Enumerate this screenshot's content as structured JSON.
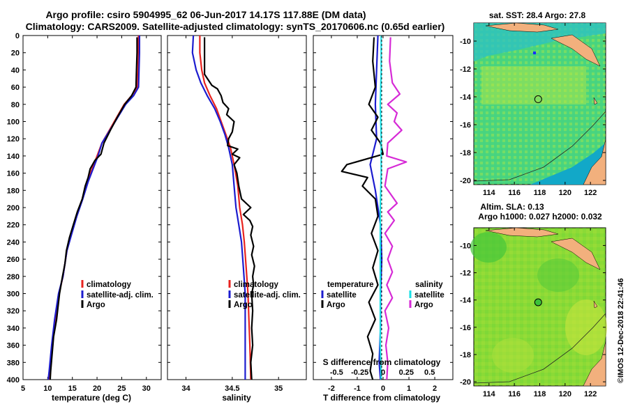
{
  "header": {
    "title_line1": "Argo profile: csiro 5904995_62 06-Jun-2017 14.17S 117.88E (DM data)",
    "title_line2": "Climatology: CARS2009. Satellite-adjusted climatology: synTS_20170606.nc (0.65d earlier)"
  },
  "colors": {
    "climatology": "#e8231f",
    "satellite": "#1c1ccf",
    "argo": "#000000",
    "sat_salinity": "#19e0e6",
    "argo_salinity_diff": "#d62ad6"
  },
  "chart_data": [
    {
      "type": "line",
      "id": "temperature",
      "xlabel": "temperature (deg C)",
      "xlim": [
        5,
        33
      ],
      "ylim": [
        0,
        400
      ],
      "y_reversed": true,
      "xticks": [
        "5",
        "10",
        "15",
        "20",
        "25",
        "30"
      ],
      "yticks": [
        "0",
        "20",
        "40",
        "60",
        "80",
        "100",
        "120",
        "140",
        "160",
        "180",
        "200",
        "220",
        "240",
        "260",
        "280",
        "300",
        "320",
        "340",
        "360",
        "380",
        "400"
      ],
      "legend": [
        "climatology",
        "satellite-adj. clim.",
        "Argo"
      ],
      "series": [
        {
          "name": "climatology",
          "color": "#e8231f",
          "points": [
            [
              28.4,
              0
            ],
            [
              28.4,
              20
            ],
            [
              28.3,
              40
            ],
            [
              28.2,
              60
            ],
            [
              27,
              70
            ],
            [
              25.5,
              80
            ],
            [
              24,
              95
            ],
            [
              22.5,
              110
            ],
            [
              21,
              125
            ],
            [
              20,
              140
            ],
            [
              19,
              155
            ],
            [
              18,
              170
            ],
            [
              17,
              190
            ],
            [
              15.8,
              210
            ],
            [
              14.8,
              230
            ],
            [
              13.9,
              250
            ],
            [
              13.1,
              280
            ],
            [
              12.3,
              300
            ],
            [
              11.5,
              330
            ],
            [
              10.9,
              360
            ],
            [
              10.4,
              390
            ],
            [
              10.2,
              400
            ]
          ]
        },
        {
          "name": "satellite-adj. clim.",
          "color": "#1c1ccf",
          "points": [
            [
              28.6,
              0
            ],
            [
              28.6,
              20
            ],
            [
              28.5,
              40
            ],
            [
              28.4,
              60
            ],
            [
              27.4,
              70
            ],
            [
              25.8,
              80
            ],
            [
              24.2,
              95
            ],
            [
              22.6,
              110
            ],
            [
              21,
              125
            ],
            [
              20.2,
              140
            ],
            [
              19.2,
              155
            ],
            [
              18.2,
              170
            ],
            [
              17.1,
              190
            ],
            [
              15.9,
              210
            ],
            [
              14.9,
              230
            ],
            [
              13.9,
              250
            ],
            [
              13.1,
              280
            ],
            [
              12.2,
              300
            ],
            [
              11.4,
              330
            ],
            [
              10.8,
              360
            ],
            [
              10.3,
              390
            ],
            [
              10.1,
              400
            ]
          ]
        },
        {
          "name": "Argo",
          "color": "#000000",
          "points": [
            [
              28.1,
              2
            ],
            [
              28.1,
              20
            ],
            [
              28,
              40
            ],
            [
              27.9,
              60
            ],
            [
              27,
              70
            ],
            [
              25.6,
              80
            ],
            [
              24.1,
              95
            ],
            [
              22.7,
              110
            ],
            [
              21.4,
              125
            ],
            [
              20.8,
              138
            ],
            [
              19.6,
              145
            ],
            [
              18.6,
              155
            ],
            [
              18.2,
              165
            ],
            [
              17.6,
              175
            ],
            [
              17,
              190
            ],
            [
              16,
              205
            ],
            [
              15.2,
              220
            ],
            [
              14.4,
              235
            ],
            [
              13.8,
              250
            ],
            [
              13.5,
              265
            ],
            [
              13,
              280
            ],
            [
              12.4,
              300
            ],
            [
              12.2,
              310
            ],
            [
              11.8,
              330
            ],
            [
              11.2,
              350
            ],
            [
              10.9,
              370
            ],
            [
              10.6,
              390
            ],
            [
              10.5,
              400
            ]
          ]
        }
      ]
    },
    {
      "type": "line",
      "id": "salinity",
      "xlabel": "salinity",
      "xlim": [
        33.8,
        35.3
      ],
      "ylim": [
        0,
        400
      ],
      "y_reversed": true,
      "xticks": [
        "34",
        "34.5",
        "35"
      ],
      "legend": [
        "climatology",
        "satellite-adj. clim.",
        "Argo"
      ],
      "series": [
        {
          "name": "climatology",
          "color": "#e8231f",
          "points": [
            [
              34.15,
              0
            ],
            [
              34.15,
              20
            ],
            [
              34.17,
              40
            ],
            [
              34.2,
              55
            ],
            [
              34.26,
              70
            ],
            [
              34.33,
              85
            ],
            [
              34.38,
              100
            ],
            [
              34.43,
              115
            ],
            [
              34.48,
              130
            ],
            [
              34.52,
              150
            ],
            [
              34.56,
              175
            ],
            [
              34.58,
              200
            ],
            [
              34.61,
              220
            ],
            [
              34.63,
              240
            ],
            [
              34.65,
              270
            ],
            [
              34.67,
              300
            ],
            [
              34.68,
              330
            ],
            [
              34.69,
              360
            ],
            [
              34.7,
              400
            ]
          ]
        },
        {
          "name": "satellite-adj. clim.",
          "color": "#1c1ccf",
          "points": [
            [
              34.08,
              0
            ],
            [
              34.07,
              20
            ],
            [
              34.11,
              40
            ],
            [
              34.16,
              55
            ],
            [
              34.23,
              70
            ],
            [
              34.31,
              85
            ],
            [
              34.37,
              100
            ],
            [
              34.42,
              115
            ],
            [
              34.46,
              130
            ],
            [
              34.5,
              150
            ],
            [
              34.52,
              175
            ],
            [
              34.54,
              200
            ],
            [
              34.57,
              220
            ],
            [
              34.6,
              240
            ],
            [
              34.62,
              270
            ],
            [
              34.64,
              300
            ],
            [
              34.64,
              330
            ],
            [
              34.64,
              360
            ],
            [
              34.64,
              400
            ]
          ]
        },
        {
          "name": "Argo",
          "color": "#000000",
          "points": [
            [
              34.2,
              2
            ],
            [
              34.2,
              20
            ],
            [
              34.2,
              45
            ],
            [
              34.28,
              58
            ],
            [
              34.34,
              62
            ],
            [
              34.38,
              70
            ],
            [
              34.4,
              78
            ],
            [
              34.46,
              85
            ],
            [
              34.44,
              92
            ],
            [
              34.52,
              100
            ],
            [
              34.5,
              112
            ],
            [
              34.46,
              120
            ],
            [
              34.45,
              128
            ],
            [
              34.56,
              132
            ],
            [
              34.5,
              138
            ],
            [
              34.58,
              142
            ],
            [
              34.52,
              150
            ],
            [
              34.55,
              160
            ],
            [
              34.57,
              175
            ],
            [
              34.6,
              190
            ],
            [
              34.7,
              200
            ],
            [
              34.62,
              208
            ],
            [
              34.69,
              215
            ],
            [
              34.72,
              222
            ],
            [
              34.7,
              232
            ],
            [
              34.73,
              245
            ],
            [
              34.71,
              255
            ],
            [
              34.74,
              268
            ],
            [
              34.72,
              280
            ],
            [
              34.73,
              290
            ],
            [
              34.71,
              300
            ],
            [
              34.72,
              320
            ],
            [
              34.71,
              340
            ],
            [
              34.72,
              360
            ],
            [
              34.7,
              380
            ],
            [
              34.71,
              400
            ]
          ]
        }
      ]
    },
    {
      "type": "line",
      "id": "difference",
      "xlabel": "T difference from climatology",
      "top_axis_label": "S difference from climatology",
      "xlim_temperature": [
        -2.7,
        2.7
      ],
      "xlim_salinity": [
        -0.75,
        0.75
      ],
      "ylim": [
        0,
        400
      ],
      "y_reversed": true,
      "xticks": [
        "-2",
        "-1",
        "0",
        "1",
        "2"
      ],
      "top_xticks": [
        "-0.5",
        "-0.25",
        "0",
        "0.25",
        "0.5"
      ],
      "legend_temperature_title": "temperature",
      "legend_salinity_title": "salinity",
      "legend_temperature": [
        "satellite",
        "Argo"
      ],
      "legend_salinity": [
        "satellite",
        "Argo"
      ],
      "series": [
        {
          "name": "T satellite",
          "axis": "temperature",
          "color": "#1c1ccf",
          "points": [
            [
              -0.2,
              0
            ],
            [
              -0.25,
              40
            ],
            [
              -0.3,
              80
            ],
            [
              -0.25,
              120
            ],
            [
              -0.5,
              150
            ],
            [
              -0.3,
              180
            ],
            [
              -0.1,
              220
            ],
            [
              -0.05,
              260
            ],
            [
              -0.1,
              300
            ],
            [
              -0.1,
              340
            ],
            [
              -0.15,
              380
            ],
            [
              -0.1,
              400
            ]
          ]
        },
        {
          "name": "T Argo",
          "axis": "temperature",
          "color": "#000000",
          "points": [
            [
              -0.35,
              2
            ],
            [
              -0.4,
              30
            ],
            [
              -0.3,
              60
            ],
            [
              -0.55,
              80
            ],
            [
              -0.2,
              95
            ],
            [
              -0.45,
              110
            ],
            [
              -0.1,
              125
            ],
            [
              0.0,
              138
            ],
            [
              -1.4,
              150
            ],
            [
              -1.6,
              158
            ],
            [
              -0.6,
              165
            ],
            [
              -0.8,
              175
            ],
            [
              -0.3,
              190
            ],
            [
              -0.2,
              210
            ],
            [
              -0.45,
              230
            ],
            [
              -0.2,
              250
            ],
            [
              -0.4,
              270
            ],
            [
              -0.2,
              290
            ],
            [
              -0.55,
              310
            ],
            [
              -0.3,
              330
            ],
            [
              -0.6,
              350
            ],
            [
              -0.4,
              370
            ],
            [
              -0.5,
              390
            ],
            [
              -0.4,
              400
            ]
          ]
        },
        {
          "name": "S satellite",
          "axis": "salinity",
          "color": "#19e0e6",
          "points": [
            [
              -0.02,
              0
            ],
            [
              -0.02,
              40
            ],
            [
              -0.03,
              80
            ],
            [
              -0.02,
              120
            ],
            [
              -0.02,
              160
            ],
            [
              -0.03,
              200
            ],
            [
              -0.03,
              240
            ],
            [
              -0.03,
              280
            ],
            [
              -0.03,
              320
            ],
            [
              -0.03,
              360
            ],
            [
              -0.02,
              400
            ]
          ]
        },
        {
          "name": "S Argo",
          "axis": "salinity",
          "color": "#d62ad6",
          "points": [
            [
              0.08,
              2
            ],
            [
              0.07,
              30
            ],
            [
              0.1,
              55
            ],
            [
              0.18,
              68
            ],
            [
              0.05,
              80
            ],
            [
              0.15,
              90
            ],
            [
              0.12,
              100
            ],
            [
              0.2,
              110
            ],
            [
              0.05,
              125
            ],
            [
              0.04,
              140
            ],
            [
              0.25,
              147
            ],
            [
              0.05,
              155
            ],
            [
              0.02,
              175
            ],
            [
              0.15,
              195
            ],
            [
              0.05,
              205
            ],
            [
              0.12,
              215
            ],
            [
              0.02,
              230
            ],
            [
              0.1,
              245
            ],
            [
              0.05,
              260
            ],
            [
              0.1,
              275
            ],
            [
              0.04,
              290
            ],
            [
              0.1,
              305
            ],
            [
              0.02,
              320
            ],
            [
              0.06,
              340
            ],
            [
              0.03,
              360
            ],
            [
              0.05,
              380
            ],
            [
              0.04,
              400
            ]
          ]
        }
      ]
    },
    {
      "type": "heatmap",
      "id": "sst_map",
      "title": "sat. SST: 28.4 Argo: 27.8",
      "xticks": [
        "114",
        "116",
        "118",
        "120",
        "122"
      ],
      "yticks": [
        "-10",
        "-12",
        "-14",
        "-16",
        "-18",
        "-20"
      ],
      "xlim": [
        112.8,
        123.2
      ],
      "ylim": [
        -20.3,
        -8.7
      ],
      "marker": [
        117.88,
        -14.17
      ]
    },
    {
      "type": "heatmap",
      "id": "sla_map",
      "title_line1": "Altim. SLA: 0.13",
      "title_line2": "Argo h1000: 0.027 h2000: 0.032",
      "xticks": [
        "114",
        "116",
        "118",
        "120",
        "122"
      ],
      "yticks": [
        "-10",
        "-12",
        "-14",
        "-16",
        "-18",
        "-20"
      ],
      "xlim": [
        112.8,
        123.2
      ],
      "ylim": [
        -20.3,
        -8.7
      ],
      "marker": [
        117.88,
        -14.17
      ]
    }
  ],
  "footer": {
    "credit": "©IMOS 12-Dec-2018 22:41:46"
  }
}
